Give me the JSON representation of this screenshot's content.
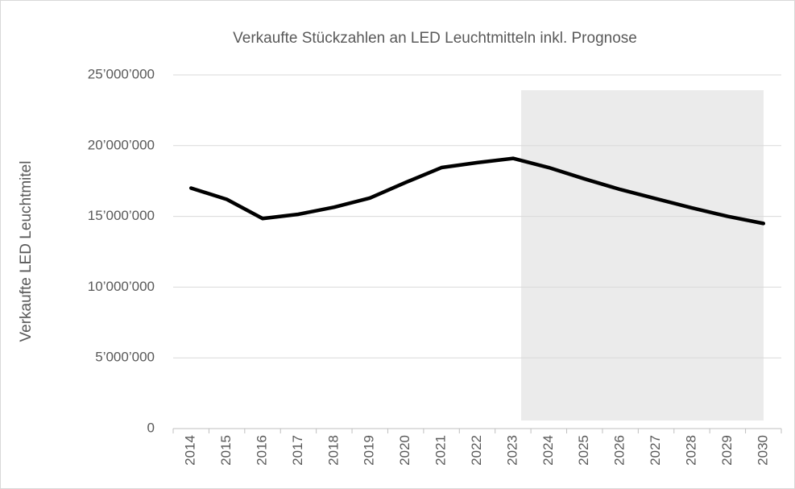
{
  "chart_data": {
    "type": "line",
    "title": "Verkaufte Stückzahlen an LED Leuchtmitteln inkl. Prognose",
    "y_label": "Verkaufte LED Leuchtmitel",
    "categories": [
      "2014",
      "2015",
      "2016",
      "2017",
      "2018",
      "2019",
      "2020",
      "2021",
      "2022",
      "2023",
      "2024",
      "2025",
      "2026",
      "2027",
      "2028",
      "2029",
      "2030"
    ],
    "values": [
      17000000,
      16200000,
      14850000,
      15150000,
      15650000,
      16300000,
      17400000,
      18450000,
      18800000,
      19100000,
      18450000,
      17650000,
      16900000,
      16250000,
      15600000,
      15000000,
      14500000
    ],
    "color": "#000000",
    "ylim": [
      0,
      25000000
    ],
    "yticks": [
      0,
      {
        "value": 5000000,
        "label": "5’000’000"
      },
      {
        "value": 10000000,
        "label": "10’000’000"
      },
      {
        "value": 15000000,
        "label": "15’000’000"
      },
      {
        "value": 20000000,
        "label": "20’000’000"
      },
      {
        "value": 25000000,
        "label": "25’000’000"
      }
    ],
    "grid": true
  }
}
